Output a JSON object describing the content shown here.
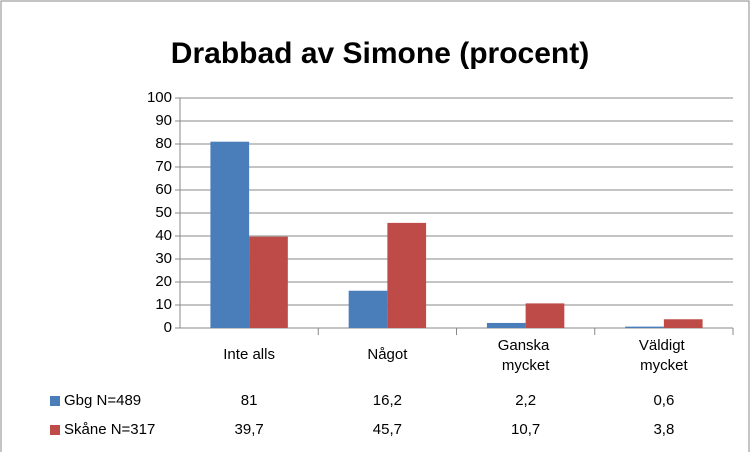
{
  "chart_data": {
    "type": "bar",
    "title": "Drabbad av Simone (procent)",
    "categories": [
      "Inte alls",
      "Något",
      "Ganska mycket",
      "Väldigt mycket"
    ],
    "series": [
      {
        "name": "Gbg N=489",
        "color": "#4a7ebb",
        "values": [
          81,
          16.2,
          2.2,
          0.6
        ],
        "value_labels": [
          "81",
          "16,2",
          "2,2",
          "0,6"
        ]
      },
      {
        "name": "Skåne N=317",
        "color": "#be4b48",
        "values": [
          39.7,
          45.7,
          10.7,
          3.8
        ],
        "value_labels": [
          "39,7",
          "45,7",
          "10,7",
          "3,8"
        ]
      }
    ],
    "ylim": [
      0,
      100
    ],
    "yticks": [
      0,
      10,
      20,
      30,
      40,
      50,
      60,
      70,
      80,
      90,
      100
    ],
    "grid": true,
    "data_table": true
  }
}
